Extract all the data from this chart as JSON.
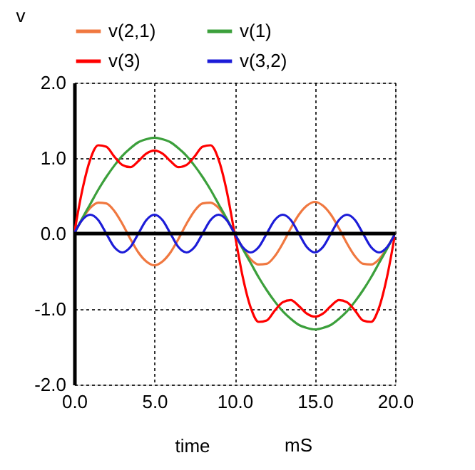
{
  "chart_data": {
    "type": "line",
    "ylabel": "v",
    "xlabel": "time",
    "annotations": [
      "mS"
    ],
    "x": [
      0,
      0.5,
      1,
      1.5,
      2,
      2.5,
      3,
      3.5,
      4,
      4.5,
      5,
      5.5,
      6,
      6.5,
      7,
      7.5,
      8,
      8.5,
      9,
      9.5,
      10,
      10.5,
      11,
      11.5,
      12,
      12.5,
      13,
      13.5,
      14,
      14.5,
      15,
      15.5,
      16,
      16.5,
      17,
      17.5,
      18,
      18.5,
      19,
      19.5,
      20
    ],
    "series": [
      {
        "name": "v(2,1)",
        "color": "#f07840",
        "values": [
          0,
          0.19,
          0.34,
          0.41,
          0.4,
          0.3,
          0.13,
          -0.07,
          -0.25,
          -0.37,
          -0.42,
          -0.37,
          -0.25,
          -0.07,
          0.13,
          0.3,
          0.4,
          0.41,
          0.34,
          0.19,
          0,
          -0.19,
          -0.34,
          -0.41,
          -0.4,
          -0.3,
          -0.13,
          0.07,
          0.25,
          0.37,
          0.42,
          0.37,
          0.25,
          0.07,
          -0.13,
          -0.3,
          -0.4,
          -0.41,
          -0.34,
          -0.19,
          0
        ]
      },
      {
        "name": "v(1)",
        "color": "#3ca03c",
        "values": [
          0,
          0.2,
          0.39,
          0.58,
          0.75,
          0.9,
          1.03,
          1.13,
          1.21,
          1.25,
          1.27,
          1.25,
          1.21,
          1.13,
          1.03,
          0.9,
          0.75,
          0.58,
          0.39,
          0.2,
          0,
          -0.2,
          -0.39,
          -0.58,
          -0.75,
          -0.9,
          -1.03,
          -1.13,
          -1.21,
          -1.25,
          -1.27,
          -1.25,
          -1.21,
          -1.13,
          -1.03,
          -0.9,
          -0.75,
          -0.58,
          -0.39,
          -0.2,
          0
        ]
      },
      {
        "name": "v(3)",
        "color": "#ff0000",
        "values": [
          0,
          0.57,
          0.98,
          1.17,
          1.15,
          1.02,
          0.91,
          0.88,
          0.96,
          1.06,
          1.1,
          1.06,
          0.96,
          0.88,
          0.91,
          1.02,
          1.15,
          1.17,
          0.98,
          0.57,
          0,
          -0.57,
          -0.98,
          -1.17,
          -1.15,
          -1.02,
          -0.91,
          -0.88,
          -0.96,
          -1.06,
          -1.1,
          -1.06,
          -0.96,
          -0.88,
          -0.91,
          -1.02,
          -1.15,
          -1.17,
          -0.98,
          -0.57,
          0
        ]
      },
      {
        "name": "v(3,2)",
        "color": "#1c1cd8",
        "values": [
          0,
          0.18,
          0.25,
          0.18,
          0,
          -0.18,
          -0.25,
          -0.18,
          0,
          0.18,
          0.25,
          0.18,
          0,
          -0.18,
          -0.25,
          -0.18,
          0,
          0.18,
          0.25,
          0.18,
          0,
          -0.18,
          -0.25,
          -0.18,
          0,
          0.18,
          0.25,
          0.18,
          0,
          -0.18,
          -0.25,
          -0.18,
          0,
          0.18,
          0.25,
          0.18,
          0,
          -0.18,
          -0.25,
          -0.18,
          0
        ]
      }
    ],
    "xlim": [
      0,
      20
    ],
    "ylim": [
      -2,
      2
    ],
    "xticks": [
      {
        "value": 0,
        "label": "0.0"
      },
      {
        "value": 5,
        "label": "5.0"
      },
      {
        "value": 10,
        "label": "10.0"
      },
      {
        "value": 15,
        "label": "15.0"
      },
      {
        "value": 20,
        "label": "20.0"
      }
    ],
    "yticks": [
      {
        "value": -2,
        "label": "-2.0"
      },
      {
        "value": -1,
        "label": "-1.0"
      },
      {
        "value": 0,
        "label": "0.0"
      },
      {
        "value": 1,
        "label": "1.0"
      },
      {
        "value": 2,
        "label": "2.0"
      }
    ],
    "ref_lines": [
      {
        "axis": "y",
        "value": 0,
        "color": "#000000"
      }
    ],
    "grid": true,
    "legend": "top",
    "marker": "none",
    "line_style": "solid"
  }
}
